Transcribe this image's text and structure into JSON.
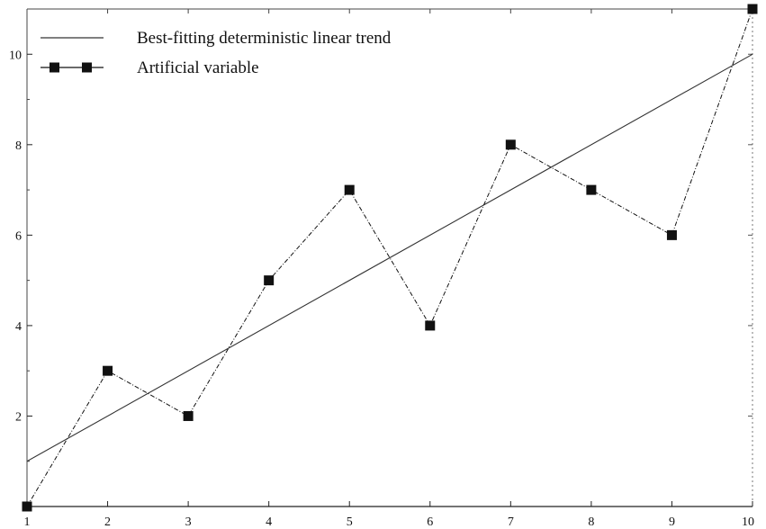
{
  "chart_data": {
    "type": "line",
    "title": "",
    "xlabel": "",
    "ylabel": "",
    "xlim": [
      1,
      10
    ],
    "ylim": [
      0,
      11
    ],
    "x_ticks": [
      "1",
      "2",
      "3",
      "4",
      "5",
      "6",
      "7",
      "8",
      "9",
      "10"
    ],
    "y_ticks": [
      "2",
      "4",
      "6",
      "8",
      "10"
    ],
    "grid": false,
    "legend_position": "top-left",
    "series": [
      {
        "name": "Best-fitting deterministic linear trend",
        "x": [
          1,
          10
        ],
        "y": [
          1,
          10
        ],
        "marker": "none",
        "color": "#333333"
      },
      {
        "name": "Artificial variable",
        "x": [
          1,
          2,
          3,
          4,
          5,
          6,
          7,
          8,
          9,
          10
        ],
        "y": [
          0,
          3,
          2,
          5,
          7,
          4,
          8,
          7,
          6,
          11
        ],
        "marker": "square",
        "color": "#111111"
      }
    ]
  }
}
